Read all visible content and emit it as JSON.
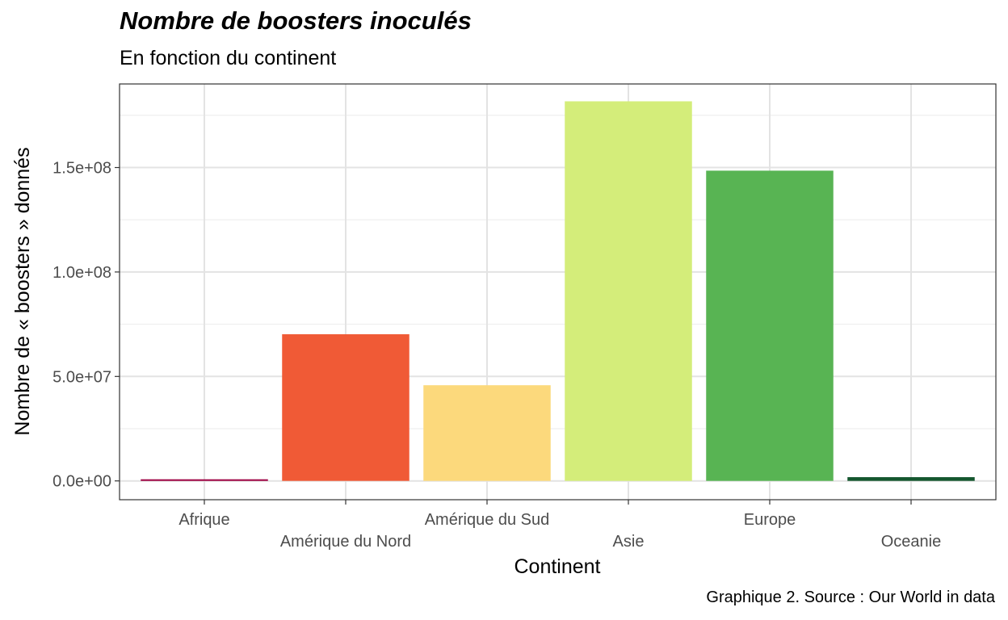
{
  "title": "Nombre de boosters inoculés",
  "subtitle": "En fonction du continent",
  "caption": "Graphique 2. Source : Our World in data",
  "chart_data": {
    "type": "bar",
    "xlabel": "Continent",
    "ylabel": "Nombre de « boosters » donnés",
    "categories": [
      "Afrique",
      "Amérique du Nord",
      "Amérique du Sud",
      "Asie",
      "Europe",
      "Oceanie"
    ],
    "values": [
      500000,
      70200000,
      45800000,
      181700000,
      148500000,
      1800000
    ],
    "colors": [
      "#9e0142",
      "#f05a36",
      "#fcd97c",
      "#d4ed7a",
      "#58b453",
      "#14562e"
    ],
    "ylim": [
      -9000000,
      190000000
    ],
    "y_ticks": [
      0,
      50000000,
      100000000,
      150000000
    ],
    "y_tick_labels": [
      "0.0e+00",
      "5.0e+07",
      "1.0e+08",
      "1.5e+08"
    ],
    "grid": true,
    "legend": "none"
  }
}
